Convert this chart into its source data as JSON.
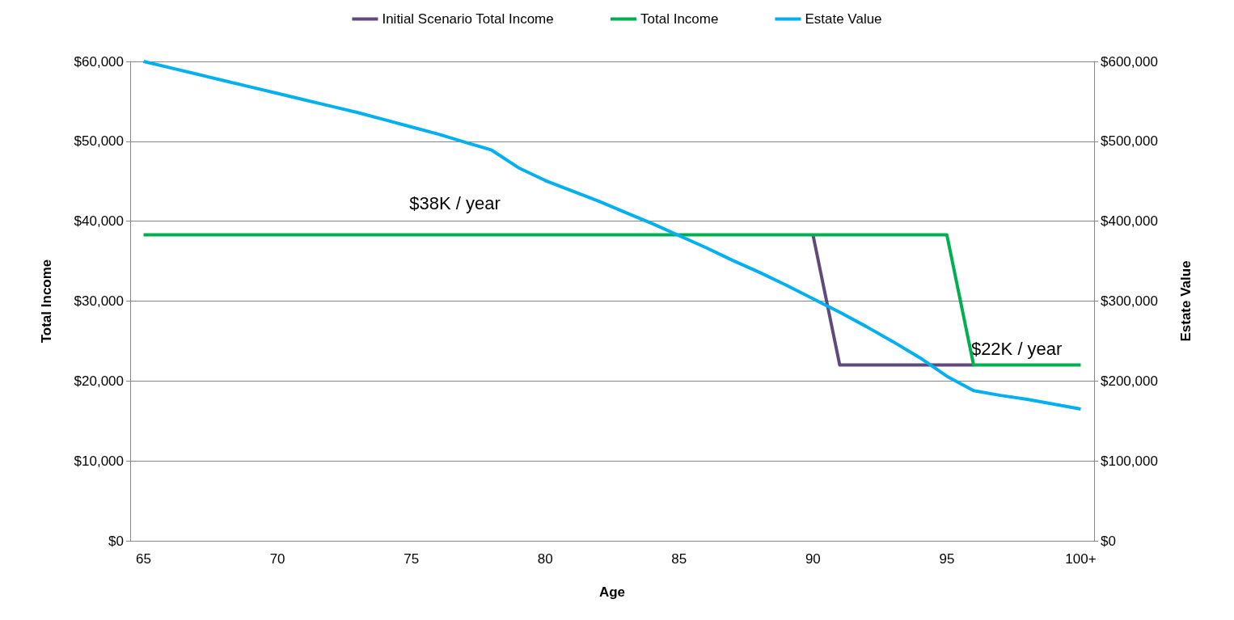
{
  "chart_data": {
    "type": "line",
    "xlabel": "Age",
    "ylabel": "Total Income",
    "y2label": "Estate Value",
    "categories": [
      "65",
      null,
      null,
      null,
      null,
      "70",
      null,
      null,
      null,
      null,
      "75",
      null,
      null,
      null,
      null,
      "80",
      null,
      null,
      null,
      null,
      "85",
      null,
      null,
      null,
      null,
      "90",
      null,
      null,
      null,
      null,
      "95",
      null,
      null,
      null,
      null,
      "100+"
    ],
    "series": [
      {
        "name": "Initial Scenario Total Income",
        "color": "#604a7b",
        "values": [
          null,
          null,
          null,
          null,
          null,
          null,
          null,
          null,
          null,
          null,
          null,
          null,
          null,
          null,
          null,
          null,
          null,
          null,
          null,
          null,
          null,
          null,
          null,
          null,
          null,
          38300,
          22000,
          22000,
          22000,
          22000,
          22000,
          22000,
          null,
          null,
          null,
          null
        ]
      },
      {
        "name": "Total Income",
        "color": "#00b050",
        "values": [
          38300,
          38300,
          38300,
          38300,
          38300,
          38300,
          38300,
          38300,
          38300,
          38300,
          38300,
          38300,
          38300,
          38300,
          38300,
          38300,
          38300,
          38300,
          38300,
          38300,
          38300,
          38300,
          38300,
          38300,
          38300,
          38300,
          38300,
          38300,
          38300,
          38300,
          38300,
          22000,
          22000,
          22000,
          22000,
          22000
        ]
      },
      {
        "name": "Estate Value",
        "color": "#00b0f0",
        "axis": "y2",
        "values": [
          600000,
          592000,
          584000,
          576000,
          568000,
          560000,
          552000,
          544000,
          536000,
          527000,
          518000,
          509000,
          499000,
          489000,
          467000,
          451000,
          438000,
          425000,
          411000,
          397000,
          382000,
          367000,
          351000,
          336000,
          320000,
          303000,
          286000,
          268000,
          249000,
          229000,
          206000,
          188000,
          182000,
          177000,
          171000,
          165000
        ]
      }
    ],
    "ylim": [
      0,
      60000
    ],
    "yticks": [
      {
        "value": 0,
        "label": "$0"
      },
      {
        "value": 10000,
        "label": "$10,000"
      },
      {
        "value": 20000,
        "label": "$20,000"
      },
      {
        "value": 30000,
        "label": "$30,000"
      },
      {
        "value": 40000,
        "label": "$40,000"
      },
      {
        "value": 50000,
        "label": "$50,000"
      },
      {
        "value": 60000,
        "label": "$60,000"
      }
    ],
    "y2lim": [
      0,
      600000
    ],
    "y2ticks": [
      {
        "value": 0,
        "label": "$0"
      },
      {
        "value": 100000,
        "label": "$100,000"
      },
      {
        "value": 200000,
        "label": "$200,000"
      },
      {
        "value": 300000,
        "label": "$300,000"
      },
      {
        "value": 400000,
        "label": "$400,000"
      },
      {
        "value": 500000,
        "label": "$500,000"
      },
      {
        "value": 600000,
        "label": "$600,000"
      }
    ],
    "annotations": [
      "$38K / year",
      "$22K / year"
    ],
    "grid": "y",
    "legend": "top",
    "marker": "none",
    "line_style": "solid"
  }
}
